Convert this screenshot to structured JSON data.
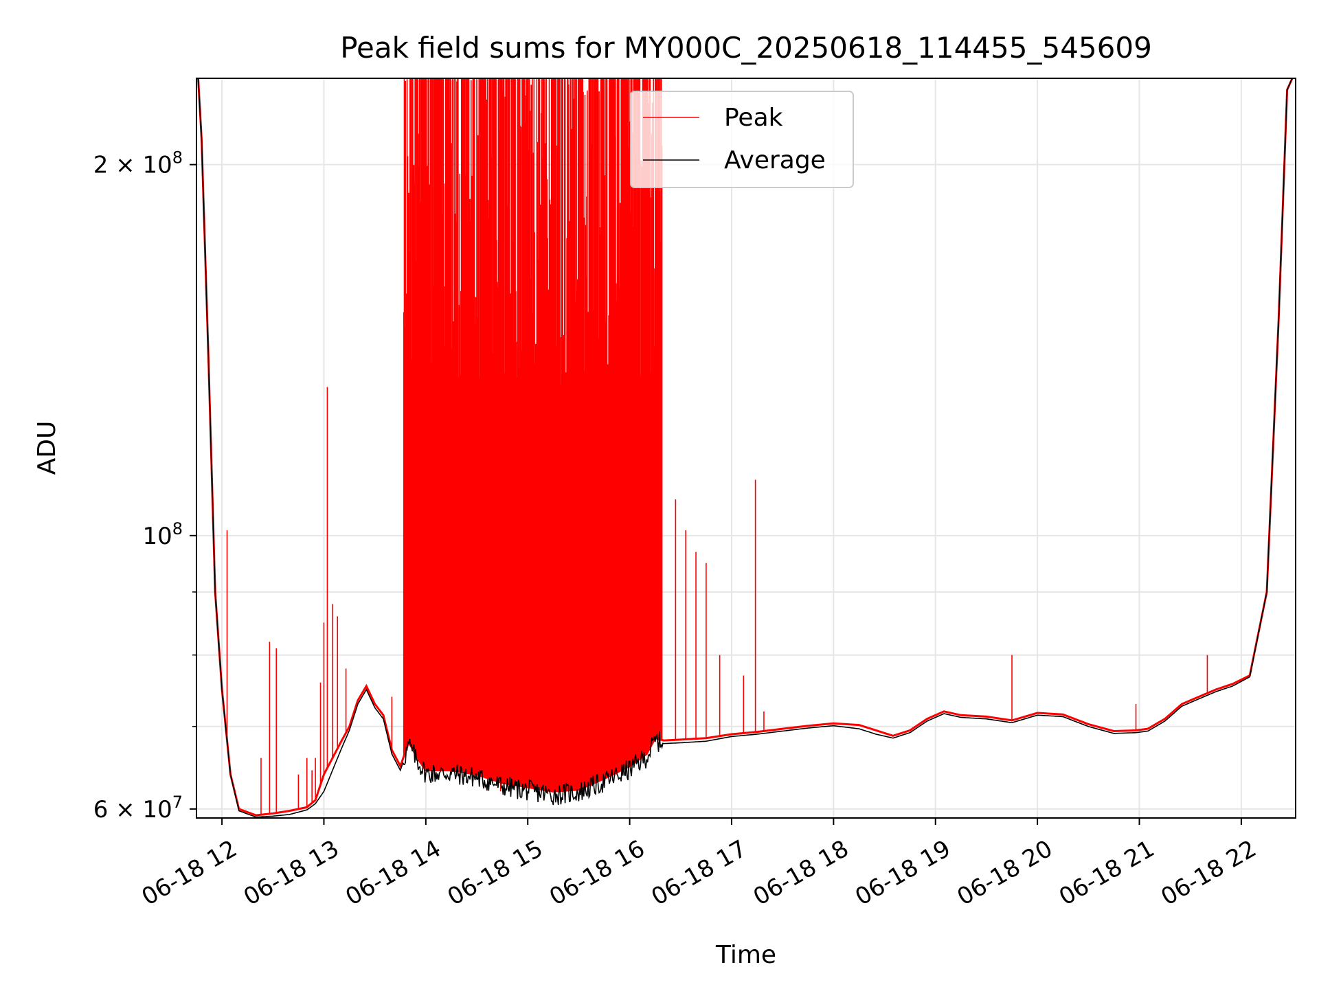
{
  "chart_data": {
    "type": "line",
    "title": "Peak field sums for MY000C_20250618_114455_545609",
    "xlabel": "Time",
    "ylabel": "ADU",
    "yscale": "log",
    "xlim": [
      "2025-06-18T11:45",
      "2025-06-18T22:32"
    ],
    "ylim": [
      59000000,
      235000000
    ],
    "grid": true,
    "legend_position": "top-center",
    "x_ticks": [
      {
        "t": "2025-06-18T12:00",
        "label": "06-18 12"
      },
      {
        "t": "2025-06-18T13:00",
        "label": "06-18 13"
      },
      {
        "t": "2025-06-18T14:00",
        "label": "06-18 14"
      },
      {
        "t": "2025-06-18T15:00",
        "label": "06-18 15"
      },
      {
        "t": "2025-06-18T16:00",
        "label": "06-18 16"
      },
      {
        "t": "2025-06-18T17:00",
        "label": "06-18 17"
      },
      {
        "t": "2025-06-18T18:00",
        "label": "06-18 18"
      },
      {
        "t": "2025-06-18T19:00",
        "label": "06-18 19"
      },
      {
        "t": "2025-06-18T20:00",
        "label": "06-18 20"
      },
      {
        "t": "2025-06-18T21:00",
        "label": "06-18 21"
      },
      {
        "t": "2025-06-18T22:00",
        "label": "06-18 22"
      }
    ],
    "y_major_ticks": [
      {
        "value": 60000000,
        "mantissa": "6",
        "label": "6 × 10",
        "exp": "7"
      },
      {
        "value": 100000000,
        "mantissa": "",
        "label": "10",
        "exp": "8"
      },
      {
        "value": 200000000,
        "mantissa": "2",
        "label": "2 × 10",
        "exp": "8"
      }
    ],
    "y_minor_ticks": [
      70000000,
      80000000,
      90000000
    ],
    "series": [
      {
        "name": "Peak",
        "color": "#ff0000",
        "points": [
          [
            "2025-06-18T11:46",
            235000000
          ],
          [
            "2025-06-18T11:48",
            210000000
          ],
          [
            "2025-06-18T11:52",
            140000000
          ],
          [
            "2025-06-18T11:56",
            90000000
          ],
          [
            "2025-06-18T12:00",
            75000000
          ],
          [
            "2025-06-18T12:05",
            64000000
          ],
          [
            "2025-06-18T12:10",
            60000000
          ],
          [
            "2025-06-18T12:20",
            59300000
          ],
          [
            "2025-06-18T12:30",
            59500000
          ],
          [
            "2025-06-18T12:40",
            59800000
          ],
          [
            "2025-06-18T12:50",
            60200000
          ],
          [
            "2025-06-18T12:55",
            61000000
          ],
          [
            "2025-06-18T13:00",
            64000000
          ],
          [
            "2025-06-18T13:10",
            68000000
          ],
          [
            "2025-06-18T13:15",
            70000000
          ],
          [
            "2025-06-18T13:20",
            73500000
          ],
          [
            "2025-06-18T13:25",
            75500000
          ],
          [
            "2025-06-18T13:30",
            73000000
          ],
          [
            "2025-06-18T13:35",
            71500000
          ],
          [
            "2025-06-18T13:40",
            67000000
          ],
          [
            "2025-06-18T13:45",
            65000000
          ],
          [
            "2025-06-18T13:50",
            68000000
          ],
          [
            "2025-06-18T13:55",
            66000000
          ],
          [
            "2025-06-18T14:00",
            64500000
          ],
          [
            "2025-06-18T14:15",
            64500000
          ],
          [
            "2025-06-18T14:30",
            64000000
          ],
          [
            "2025-06-18T14:45",
            63000000
          ],
          [
            "2025-06-18T15:00",
            62500000
          ],
          [
            "2025-06-18T15:15",
            62000000
          ],
          [
            "2025-06-18T15:30",
            62200000
          ],
          [
            "2025-06-18T15:45",
            63500000
          ],
          [
            "2025-06-18T16:00",
            65000000
          ],
          [
            "2025-06-18T16:10",
            66500000
          ],
          [
            "2025-06-18T16:15",
            68500000
          ],
          [
            "2025-06-18T16:20",
            68200000
          ],
          [
            "2025-06-18T16:30",
            68300000
          ],
          [
            "2025-06-18T16:45",
            68500000
          ],
          [
            "2025-06-18T17:00",
            69000000
          ],
          [
            "2025-06-18T17:15",
            69300000
          ],
          [
            "2025-06-18T17:30",
            69700000
          ],
          [
            "2025-06-18T17:45",
            70100000
          ],
          [
            "2025-06-18T18:00",
            70400000
          ],
          [
            "2025-06-18T18:15",
            70200000
          ],
          [
            "2025-06-18T18:25",
            69500000
          ],
          [
            "2025-06-18T18:35",
            68800000
          ],
          [
            "2025-06-18T18:45",
            69500000
          ],
          [
            "2025-06-18T18:55",
            71000000
          ],
          [
            "2025-06-18T19:05",
            72000000
          ],
          [
            "2025-06-18T19:15",
            71500000
          ],
          [
            "2025-06-18T19:30",
            71300000
          ],
          [
            "2025-06-18T19:45",
            70800000
          ],
          [
            "2025-06-18T20:00",
            71800000
          ],
          [
            "2025-06-18T20:15",
            71600000
          ],
          [
            "2025-06-18T20:30",
            70300000
          ],
          [
            "2025-06-18T20:45",
            69400000
          ],
          [
            "2025-06-18T20:58",
            69500000
          ],
          [
            "2025-06-18T21:05",
            69700000
          ],
          [
            "2025-06-18T21:15",
            71000000
          ],
          [
            "2025-06-18T21:25",
            73000000
          ],
          [
            "2025-06-18T21:35",
            74000000
          ],
          [
            "2025-06-18T21:45",
            75000000
          ],
          [
            "2025-06-18T21:55",
            75800000
          ],
          [
            "2025-06-18T22:05",
            77000000
          ],
          [
            "2025-06-18T22:15",
            90000000
          ],
          [
            "2025-06-18T22:22",
            150000000
          ],
          [
            "2025-06-18T22:27",
            230000000
          ],
          [
            "2025-06-18T22:30",
            235000000
          ]
        ],
        "spikes": [
          [
            "2025-06-18T12:03",
            101000000
          ],
          [
            "2025-06-18T12:23",
            66000000
          ],
          [
            "2025-06-18T12:28",
            82000000
          ],
          [
            "2025-06-18T12:32",
            81000000
          ],
          [
            "2025-06-18T12:45",
            64000000
          ],
          [
            "2025-06-18T12:50",
            66000000
          ],
          [
            "2025-06-18T12:53",
            64500000
          ],
          [
            "2025-06-18T12:55",
            66000000
          ],
          [
            "2025-06-18T12:58",
            76000000
          ],
          [
            "2025-06-18T13:00",
            85000000
          ],
          [
            "2025-06-18T13:02",
            132000000
          ],
          [
            "2025-06-18T13:05",
            88000000
          ],
          [
            "2025-06-18T13:08",
            86000000
          ],
          [
            "2025-06-18T13:13",
            78000000
          ],
          [
            "2025-06-18T13:40",
            74000000
          ],
          [
            "2025-06-18T14:44",
            62000000
          ],
          [
            "2025-06-18T15:40",
            148000000
          ],
          [
            "2025-06-18T15:50",
            128000000
          ],
          [
            "2025-06-18T16:05",
            125000000
          ],
          [
            "2025-06-18T16:16",
            114000000
          ],
          [
            "2025-06-18T16:27",
            107000000
          ],
          [
            "2025-06-18T16:33",
            101000000
          ],
          [
            "2025-06-18T16:39",
            97000000
          ],
          [
            "2025-06-18T16:45",
            95000000
          ],
          [
            "2025-06-18T16:53",
            80000000
          ],
          [
            "2025-06-18T17:07",
            77000000
          ],
          [
            "2025-06-18T17:14",
            111000000
          ],
          [
            "2025-06-18T17:19",
            72000000
          ],
          [
            "2025-06-18T19:45",
            80000000
          ],
          [
            "2025-06-18T20:58",
            73000000
          ],
          [
            "2025-06-18T21:40",
            80000000
          ]
        ],
        "burst": {
          "start": "2025-06-18T13:47",
          "end": "2025-06-18T16:19",
          "upper": 235000000
        }
      },
      {
        "name": "Average",
        "color": "#000000",
        "points": [
          [
            "2025-06-18T11:46",
            235000000
          ],
          [
            "2025-06-18T11:48",
            210000000
          ],
          [
            "2025-06-18T11:52",
            140000000
          ],
          [
            "2025-06-18T11:56",
            90000000
          ],
          [
            "2025-06-18T12:00",
            75000000
          ],
          [
            "2025-06-18T12:05",
            64000000
          ],
          [
            "2025-06-18T12:10",
            59800000
          ],
          [
            "2025-06-18T12:20",
            59100000
          ],
          [
            "2025-06-18T12:30",
            59200000
          ],
          [
            "2025-06-18T12:40",
            59400000
          ],
          [
            "2025-06-18T12:50",
            59900000
          ],
          [
            "2025-06-18T12:55",
            60600000
          ],
          [
            "2025-06-18T13:00",
            62000000
          ],
          [
            "2025-06-18T13:10",
            67000000
          ],
          [
            "2025-06-18T13:15",
            69500000
          ],
          [
            "2025-06-18T13:20",
            73000000
          ],
          [
            "2025-06-18T13:25",
            75000000
          ],
          [
            "2025-06-18T13:30",
            72500000
          ],
          [
            "2025-06-18T13:35",
            71000000
          ],
          [
            "2025-06-18T13:40",
            66500000
          ],
          [
            "2025-06-18T13:45",
            64500000
          ],
          [
            "2025-06-18T13:50",
            67500000
          ],
          [
            "2025-06-18T13:55",
            65500000
          ],
          [
            "2025-06-18T14:00",
            64000000
          ],
          [
            "2025-06-18T14:15",
            64000000
          ],
          [
            "2025-06-18T14:30",
            63500000
          ],
          [
            "2025-06-18T14:45",
            62500000
          ],
          [
            "2025-06-18T15:00",
            62000000
          ],
          [
            "2025-06-18T15:15",
            61500000
          ],
          [
            "2025-06-18T15:30",
            61800000
          ],
          [
            "2025-06-18T15:45",
            63000000
          ],
          [
            "2025-06-18T16:00",
            64500000
          ],
          [
            "2025-06-18T16:10",
            66000000
          ],
          [
            "2025-06-18T16:15",
            68000000
          ],
          [
            "2025-06-18T16:20",
            67800000
          ],
          [
            "2025-06-18T16:30",
            67900000
          ],
          [
            "2025-06-18T16:45",
            68100000
          ],
          [
            "2025-06-18T17:00",
            68700000
          ],
          [
            "2025-06-18T17:15",
            69000000
          ],
          [
            "2025-06-18T17:30",
            69400000
          ],
          [
            "2025-06-18T17:45",
            69800000
          ],
          [
            "2025-06-18T18:00",
            70100000
          ],
          [
            "2025-06-18T18:15",
            69700000
          ],
          [
            "2025-06-18T18:25",
            69000000
          ],
          [
            "2025-06-18T18:35",
            68500000
          ],
          [
            "2025-06-18T18:45",
            69200000
          ],
          [
            "2025-06-18T18:55",
            70700000
          ],
          [
            "2025-06-18T19:05",
            71700000
          ],
          [
            "2025-06-18T19:15",
            71200000
          ],
          [
            "2025-06-18T19:30",
            71000000
          ],
          [
            "2025-06-18T19:45",
            70500000
          ],
          [
            "2025-06-18T20:00",
            71500000
          ],
          [
            "2025-06-18T20:15",
            71300000
          ],
          [
            "2025-06-18T20:30",
            70000000
          ],
          [
            "2025-06-18T20:45",
            69100000
          ],
          [
            "2025-06-18T20:58",
            69200000
          ],
          [
            "2025-06-18T21:05",
            69400000
          ],
          [
            "2025-06-18T21:15",
            70700000
          ],
          [
            "2025-06-18T21:25",
            72700000
          ],
          [
            "2025-06-18T21:35",
            73700000
          ],
          [
            "2025-06-18T21:45",
            74700000
          ],
          [
            "2025-06-18T21:55",
            75500000
          ],
          [
            "2025-06-18T22:05",
            76800000
          ],
          [
            "2025-06-18T22:15",
            90000000
          ],
          [
            "2025-06-18T22:22",
            150000000
          ],
          [
            "2025-06-18T22:27",
            230000000
          ],
          [
            "2025-06-18T22:30",
            235000000
          ]
        ]
      }
    ]
  }
}
